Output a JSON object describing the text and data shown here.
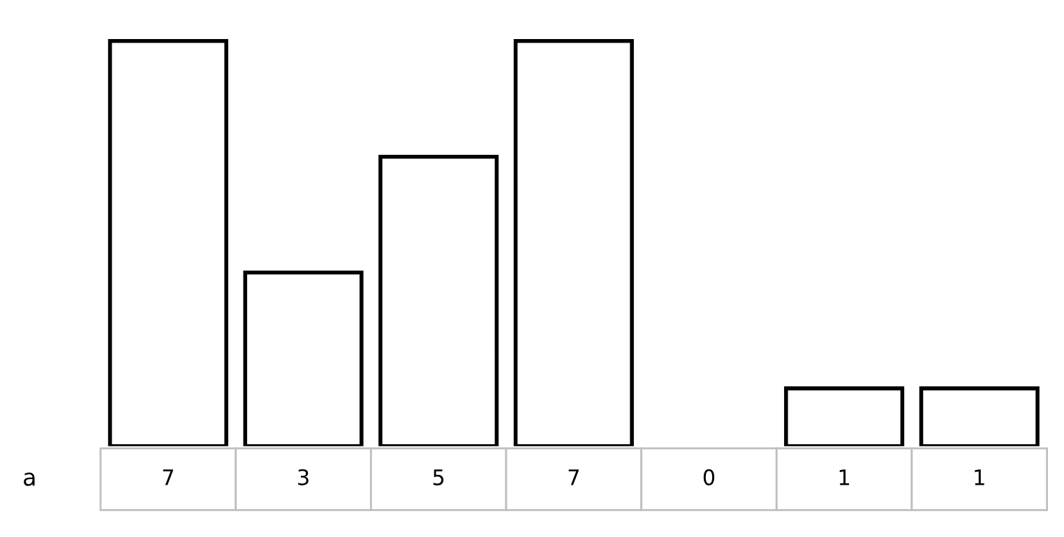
{
  "chart_data": {
    "type": "bar",
    "categories": [
      null,
      null,
      null,
      null,
      null,
      null,
      null
    ],
    "series": [
      {
        "name": "a",
        "color": "#ffffff",
        "values": [
          7,
          3,
          5,
          7,
          0,
          1,
          1
        ]
      }
    ],
    "data_labels": true,
    "grid": false,
    "legend": false
  }
}
